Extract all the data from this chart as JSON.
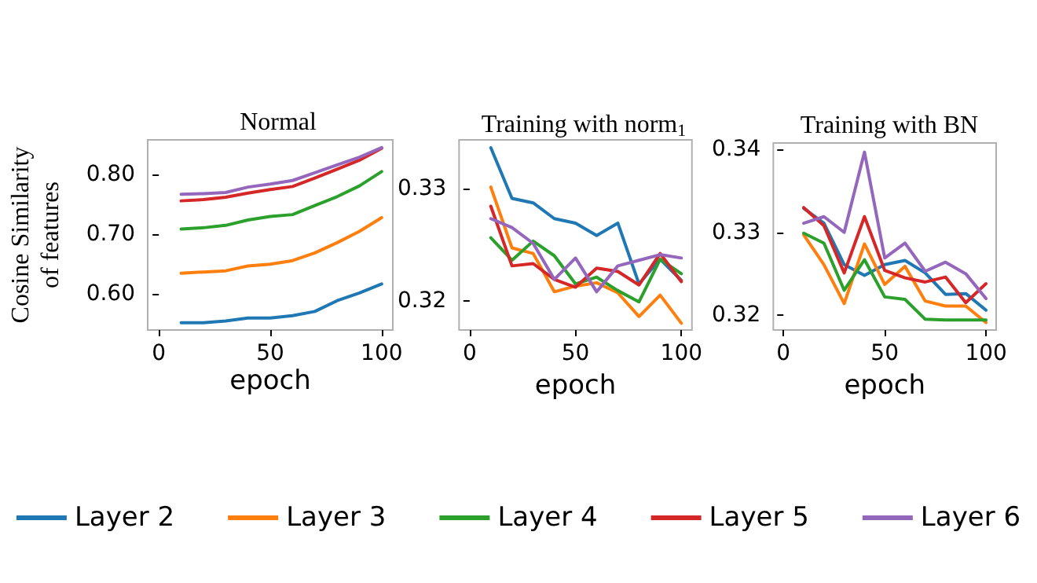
{
  "chart_data": [
    {
      "type": "line",
      "title": "Normal",
      "xlabel": "epoch",
      "ylabel": "Cosine Similarity\nof features",
      "x": [
        10,
        20,
        30,
        40,
        50,
        60,
        70,
        80,
        90,
        100
      ],
      "xlim": [
        -5,
        105
      ],
      "xticks": [
        0,
        50,
        100
      ],
      "ylim": [
        0.54,
        0.858
      ],
      "yticks": [
        {
          "value": 0.6,
          "label": "0.60"
        },
        {
          "value": 0.7,
          "label": "0.70"
        },
        {
          "value": 0.8,
          "label": "0.80"
        }
      ],
      "grid": false,
      "legend": "bottom",
      "marker": "none",
      "line_style": "solid",
      "series": [
        {
          "name": "Layer 2",
          "color": "#1f77b4",
          "values": [
            0.552,
            0.552,
            0.555,
            0.56,
            0.56,
            0.564,
            0.571,
            0.589,
            0.602,
            0.617
          ]
        },
        {
          "name": "Layer 3",
          "color": "#ff7f0e",
          "values": [
            0.635,
            0.637,
            0.639,
            0.647,
            0.65,
            0.656,
            0.669,
            0.686,
            0.705,
            0.728
          ]
        },
        {
          "name": "Layer 4",
          "color": "#2ca02c",
          "values": [
            0.709,
            0.711,
            0.715,
            0.724,
            0.73,
            0.733,
            0.748,
            0.763,
            0.781,
            0.805
          ]
        },
        {
          "name": "Layer 5",
          "color": "#d62728",
          "values": [
            0.756,
            0.758,
            0.762,
            0.769,
            0.775,
            0.78,
            0.794,
            0.809,
            0.824,
            0.844
          ]
        },
        {
          "name": "Layer 6",
          "color": "#9467bd",
          "values": [
            0.767,
            0.768,
            0.77,
            0.779,
            0.784,
            0.79,
            0.803,
            0.816,
            0.829,
            0.845
          ]
        }
      ]
    },
    {
      "type": "line",
      "title": "Training with norm$_{1}$",
      "xlabel": "epoch",
      "x": [
        10,
        20,
        30,
        40,
        50,
        60,
        70,
        80,
        90,
        100
      ],
      "xlim": [
        -5,
        105
      ],
      "xticks": [
        0,
        50,
        100
      ],
      "ylim": [
        0.3174,
        0.3343
      ],
      "yticks": [
        0.32,
        0.33
      ],
      "grid": false,
      "marker": "none",
      "line_style": "solid",
      "series": [
        {
          "color": "#1f77b4",
          "values": [
            0.3336,
            0.3291,
            0.3287,
            0.3273,
            0.3269,
            0.3258,
            0.3269,
            0.3215,
            0.3237,
            0.3218
          ]
        },
        {
          "color": "#ff7f0e",
          "values": [
            0.3301,
            0.3247,
            0.3242,
            0.3208,
            0.3213,
            0.3216,
            0.3207,
            0.3186,
            0.3205,
            0.318
          ]
        },
        {
          "color": "#2ca02c",
          "values": [
            0.3256,
            0.3236,
            0.3253,
            0.324,
            0.3215,
            0.3221,
            0.3209,
            0.3199,
            0.3237,
            0.3224
          ]
        },
        {
          "color": "#d62728",
          "values": [
            0.3284,
            0.3231,
            0.3233,
            0.3219,
            0.3212,
            0.3229,
            0.3226,
            0.3214,
            0.3242,
            0.3217
          ]
        },
        {
          "color": "#9467bd",
          "values": [
            0.3273,
            0.3265,
            0.3251,
            0.3219,
            0.3238,
            0.3208,
            0.3231,
            0.3236,
            0.3241,
            0.3238
          ]
        }
      ]
    },
    {
      "type": "line",
      "title": "Training with BN",
      "xlabel": "epoch",
      "x": [
        10,
        20,
        30,
        40,
        50,
        60,
        70,
        80,
        90,
        100
      ],
      "xlim": [
        -5,
        105
      ],
      "xticks": [
        0,
        50,
        100
      ],
      "ylim": [
        0.3182,
        0.3408
      ],
      "yticks": [
        0.32,
        0.33,
        0.34
      ],
      "grid": false,
      "marker": "none",
      "line_style": "solid",
      "series": [
        {
          "color": "#1f77b4",
          "values": [
            0.3329,
            0.3311,
            0.3261,
            0.3248,
            0.3261,
            0.3266,
            0.3251,
            0.3225,
            0.3226,
            0.3206
          ]
        },
        {
          "color": "#ff7f0e",
          "values": [
            0.3297,
            0.3261,
            0.3214,
            0.3286,
            0.3237,
            0.3259,
            0.3217,
            0.3211,
            0.3211,
            0.3191
          ]
        },
        {
          "color": "#2ca02c",
          "values": [
            0.3299,
            0.3287,
            0.323,
            0.3267,
            0.3222,
            0.3219,
            0.3195,
            0.3194,
            0.3194,
            0.3194
          ]
        },
        {
          "color": "#d62728",
          "values": [
            0.333,
            0.3308,
            0.3251,
            0.3319,
            0.3254,
            0.3245,
            0.324,
            0.3246,
            0.3215,
            0.3238
          ]
        },
        {
          "color": "#9467bd",
          "values": [
            0.3311,
            0.3319,
            0.33,
            0.3397,
            0.3269,
            0.3287,
            0.3253,
            0.3264,
            0.325,
            0.322
          ]
        }
      ]
    }
  ]
}
